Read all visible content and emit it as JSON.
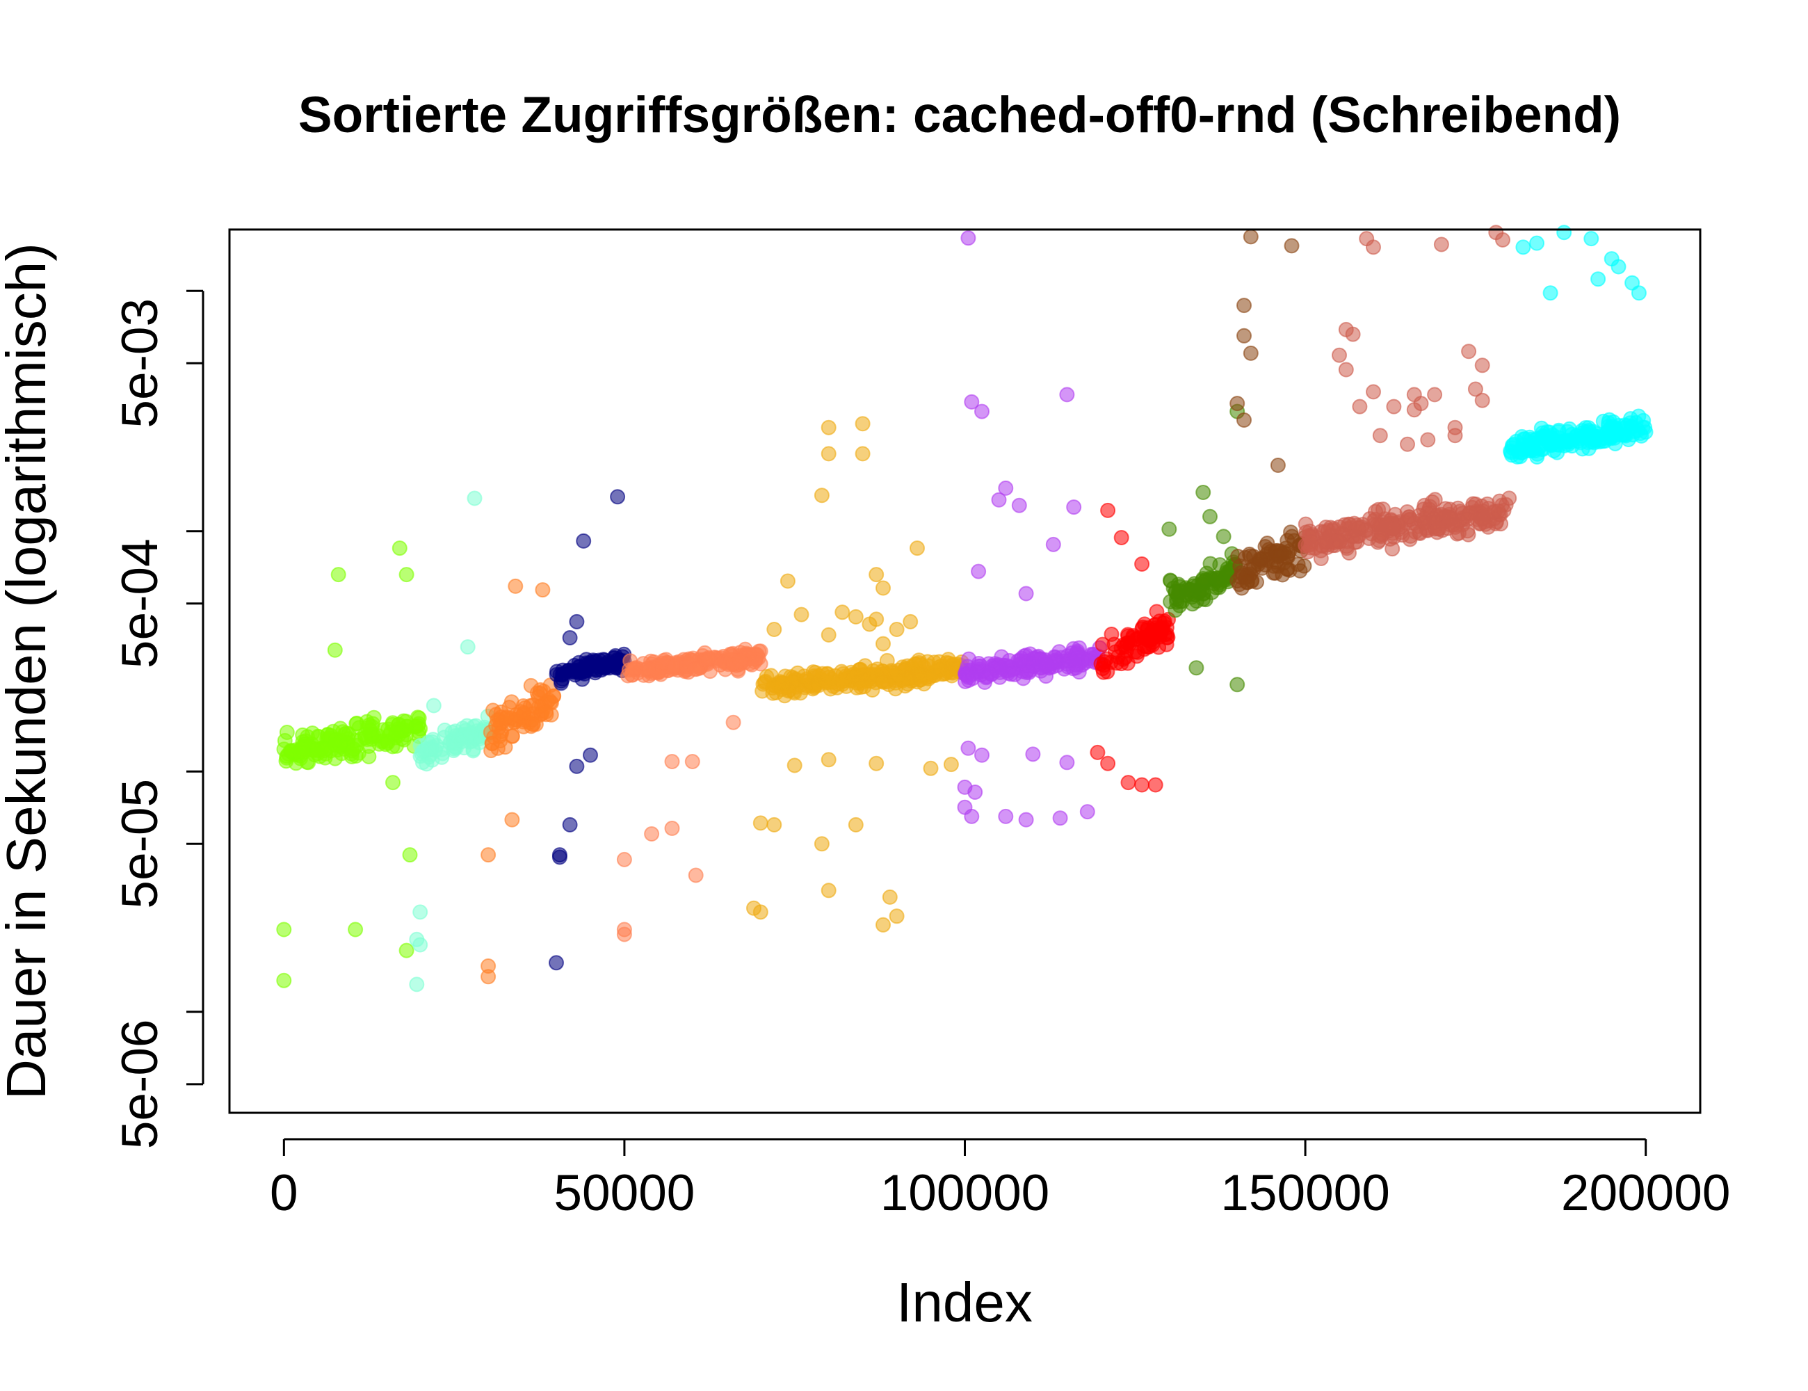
{
  "chart_data": {
    "type": "scatter",
    "title": "Sortierte Zugriffsgrößen: cached-off0-rnd (Schreibend)",
    "xlabel": "Index",
    "ylabel": "Dauer in Sekunden (logarithmisch)",
    "x_scale": "linear",
    "y_scale": "log",
    "xlim": [
      -8000,
      208000
    ],
    "ylim": [
      3.8e-06,
      0.018
    ],
    "x_ticks": [
      {
        "value": 0,
        "label": "0"
      },
      {
        "value": 50000,
        "label": "50000"
      },
      {
        "value": 100000,
        "label": "100000"
      },
      {
        "value": 150000,
        "label": "150000"
      },
      {
        "value": 200000,
        "label": "200000"
      }
    ],
    "y_ticks": [
      {
        "value": 5e-06,
        "label": "5e-06"
      },
      {
        "value": 1e-05,
        "label": ""
      },
      {
        "value": 5e-05,
        "label": "5e-05"
      },
      {
        "value": 0.0001,
        "label": ""
      },
      {
        "value": 0.0005,
        "label": "5e-04"
      },
      {
        "value": 0.001,
        "label": ""
      },
      {
        "value": 0.005,
        "label": "5e-03"
      },
      {
        "value": 0.01,
        "label": ""
      }
    ],
    "grid": false,
    "legend": "none",
    "series": [
      {
        "x_start": 0,
        "x_end": 20000,
        "color": "#7fff00",
        "base": 0.000135,
        "spread": 4e-05,
        "outliers": [
          [
            0,
            2.2e-05
          ],
          [
            0,
            1.35e-05
          ],
          [
            8000,
            0.00066
          ],
          [
            7500,
            0.00032
          ],
          [
            17000,
            0.00085
          ],
          [
            18000,
            0.00066
          ],
          [
            16000,
            9e-05
          ],
          [
            18500,
            4.5e-05
          ],
          [
            10500,
            2.2e-05
          ],
          [
            18000,
            1.8e-05
          ]
        ]
      },
      {
        "x_start": 20000,
        "x_end": 30000,
        "color": "#7fffd4",
        "base": 0.000135,
        "spread": 4e-05,
        "outliers": [
          [
            28000,
            0.00137
          ],
          [
            27000,
            0.00033
          ],
          [
            22000,
            0.000188
          ],
          [
            19500,
            2e-05
          ],
          [
            19500,
            1.3e-05
          ],
          [
            20000,
            2.6e-05
          ],
          [
            20000,
            1.9e-05
          ]
        ]
      },
      {
        "x_start": 30000,
        "x_end": 40000,
        "color": "#ff7f24",
        "base": 0.00017,
        "spread": 7e-05,
        "outliers": [
          [
            34000,
            0.00059
          ],
          [
            38000,
            0.00057
          ],
          [
            33500,
            6.3e-05
          ],
          [
            30000,
            4.5e-05
          ],
          [
            30000,
            1.55e-05
          ],
          [
            30000,
            1.4e-05
          ]
        ]
      },
      {
        "x_start": 40000,
        "x_end": 50000,
        "color": "#000080",
        "base": 0.00027,
        "spread": 5e-05,
        "outliers": [
          [
            49000,
            0.00139
          ],
          [
            44000,
            0.00091
          ],
          [
            43000,
            0.00042
          ],
          [
            42000,
            0.00036
          ],
          [
            45000,
            0.000117
          ],
          [
            43000,
            0.000105
          ],
          [
            42000,
            6e-05
          ],
          [
            40500,
            4.5e-05
          ],
          [
            40500,
            4.4e-05
          ],
          [
            40000,
            1.6e-05
          ]
        ]
      },
      {
        "x_start": 50000,
        "x_end": 70000,
        "color": "#ff7f50",
        "base": 0.00028,
        "spread": 5e-05,
        "outliers": [
          [
            67000,
            0.00029
          ],
          [
            66000,
            0.00016
          ],
          [
            57000,
            0.00011
          ],
          [
            60000,
            0.00011
          ],
          [
            54000,
            5.5e-05
          ],
          [
            57000,
            5.8e-05
          ],
          [
            50000,
            4.3e-05
          ],
          [
            60500,
            3.7e-05
          ],
          [
            50000,
            2.2e-05
          ],
          [
            50000,
            2.1e-05
          ]
        ]
      },
      {
        "x_start": 70000,
        "x_end": 100000,
        "color": "#eeaa11",
        "base": 0.000245,
        "spread": 5e-05,
        "outliers": [
          [
            80000,
            0.0027
          ],
          [
            80000,
            0.0021
          ],
          [
            85000,
            0.0028
          ],
          [
            85000,
            0.0021
          ],
          [
            79000,
            0.00141
          ],
          [
            93000,
            0.00085
          ],
          [
            74000,
            0.00062
          ],
          [
            87000,
            0.00066
          ],
          [
            88000,
            0.00058
          ],
          [
            76000,
            0.00045
          ],
          [
            82000,
            0.00046
          ],
          [
            84000,
            0.00044
          ],
          [
            87000,
            0.00043
          ],
          [
            72000,
            0.00039
          ],
          [
            86000,
            0.00041
          ],
          [
            90000,
            0.00039
          ],
          [
            92000,
            0.00042
          ],
          [
            80000,
            0.00037
          ],
          [
            88000,
            0.00034
          ],
          [
            75000,
            0.000106
          ],
          [
            80000,
            0.000112
          ],
          [
            87000,
            0.000108
          ],
          [
            95000,
            0.000103
          ],
          [
            98000,
            0.000107
          ],
          [
            70000,
            6.1e-05
          ],
          [
            72000,
            6e-05
          ],
          [
            79000,
            5e-05
          ],
          [
            84000,
            6e-05
          ],
          [
            70000,
            2.6e-05
          ],
          [
            69000,
            2.7e-05
          ],
          [
            80000,
            3.2e-05
          ],
          [
            89000,
            3e-05
          ],
          [
            88000,
            2.3e-05
          ],
          [
            90000,
            2.5e-05
          ]
        ]
      },
      {
        "x_start": 100000,
        "x_end": 120000,
        "color": "#b03ef0",
        "base": 0.00028,
        "spread": 6e-05,
        "outliers": [
          [
            100500,
            0.0166
          ],
          [
            101000,
            0.00345
          ],
          [
            102500,
            0.00315
          ],
          [
            115000,
            0.0037
          ],
          [
            105000,
            0.00135
          ],
          [
            106000,
            0.00151
          ],
          [
            108000,
            0.00128
          ],
          [
            116000,
            0.00126
          ],
          [
            113000,
            0.00088
          ],
          [
            102000,
            0.00068
          ],
          [
            109000,
            0.00055
          ],
          [
            100500,
            0.000125
          ],
          [
            102500,
            0.000117
          ],
          [
            110000,
            0.000118
          ],
          [
            115000,
            0.000109
          ],
          [
            100000,
            8.6e-05
          ],
          [
            101500,
            8.2e-05
          ],
          [
            101000,
            6.5e-05
          ],
          [
            100000,
            7.1e-05
          ],
          [
            106000,
            6.5e-05
          ],
          [
            109000,
            6.3e-05
          ],
          [
            114000,
            6.4e-05
          ],
          [
            118000,
            6.8e-05
          ]
        ]
      },
      {
        "x_start": 120000,
        "x_end": 130000,
        "color": "#ff0000",
        "base": 0.00034,
        "spread": 0.00012,
        "outliers": [
          [
            121000,
            0.00122
          ],
          [
            123000,
            0.00094
          ],
          [
            126000,
            0.00073
          ],
          [
            119500,
            0.00012
          ],
          [
            121000,
            0.000108
          ],
          [
            124000,
            9e-05
          ],
          [
            126000,
            8.8e-05
          ],
          [
            128000,
            8.8e-05
          ]
        ]
      },
      {
        "x_start": 130000,
        "x_end": 140000,
        "color": "#458b00",
        "base": 0.0006,
        "spread": 0.0002,
        "outliers": [
          [
            135000,
            0.00145
          ],
          [
            136000,
            0.00115
          ],
          [
            130000,
            0.00102
          ],
          [
            138000,
            0.00095
          ],
          [
            140000,
            0.00315
          ],
          [
            134000,
            0.00027
          ],
          [
            140000,
            0.00023
          ]
        ]
      },
      {
        "x_start": 140000,
        "x_end": 150000,
        "color": "#8b4513",
        "base": 0.00075,
        "spread": 0.0003,
        "outliers": [
          [
            142000,
            0.0168
          ],
          [
            141000,
            0.0087
          ],
          [
            141000,
            0.0065
          ],
          [
            142000,
            0.0055
          ],
          [
            140000,
            0.0034
          ],
          [
            141000,
            0.0029
          ],
          [
            148000,
            0.0154
          ],
          [
            146000,
            0.00188
          ]
        ]
      },
      {
        "x_start": 150000,
        "x_end": 180000,
        "color": "#cd5c4c",
        "base": 0.00105,
        "spread": 0.00035,
        "outliers": [
          [
            159000,
            0.0165
          ],
          [
            160000,
            0.0152
          ],
          [
            170000,
            0.0156
          ],
          [
            178000,
            0.0175
          ],
          [
            179000,
            0.0163
          ],
          [
            156000,
            0.0069
          ],
          [
            157000,
            0.0066
          ],
          [
            155000,
            0.0054
          ],
          [
            156000,
            0.0047
          ],
          [
            158000,
            0.0033
          ],
          [
            160000,
            0.0038
          ],
          [
            163000,
            0.0033
          ],
          [
            166000,
            0.0037
          ],
          [
            166000,
            0.0032
          ],
          [
            169000,
            0.0037
          ],
          [
            167000,
            0.0034
          ],
          [
            172000,
            0.0027
          ],
          [
            176000,
            0.0035
          ],
          [
            175000,
            0.0039
          ],
          [
            176000,
            0.0049
          ],
          [
            174000,
            0.0056
          ],
          [
            161000,
            0.0025
          ],
          [
            172000,
            0.0025
          ],
          [
            168000,
            0.0024
          ],
          [
            165000,
            0.0023
          ]
        ]
      },
      {
        "x_start": 180000,
        "x_end": 200000,
        "color": "#00ffff",
        "base": 0.00245,
        "spread": 0.0006,
        "outliers": [
          [
            182000,
            0.0152
          ],
          [
            184000,
            0.0158
          ],
          [
            188000,
            0.0175
          ],
          [
            192000,
            0.0165
          ],
          [
            195000,
            0.0136
          ],
          [
            196000,
            0.0126
          ],
          [
            198000,
            0.0108
          ],
          [
            199000,
            0.0098
          ],
          [
            193000,
            0.0112
          ],
          [
            186000,
            0.0098
          ]
        ]
      }
    ]
  }
}
